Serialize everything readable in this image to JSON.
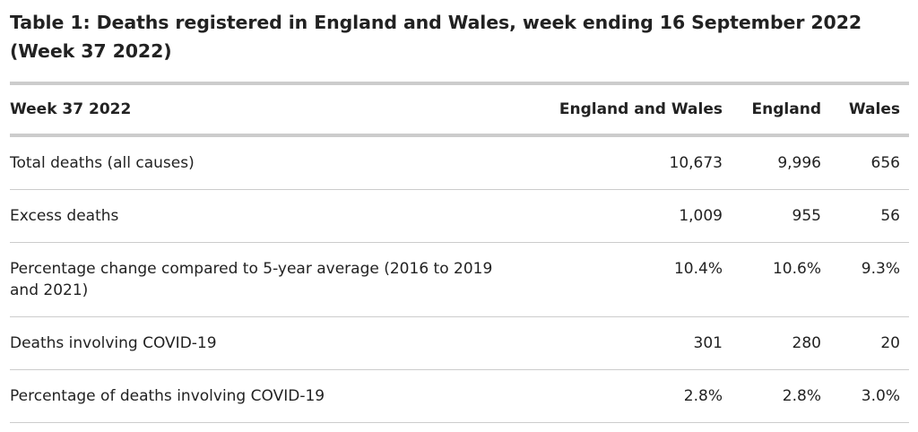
{
  "caption": "Table 1: Deaths registered in England and Wales, week ending 16 September 2022 (Week 37 2022)",
  "table": {
    "headers": [
      "Week 37 2022",
      "England and Wales",
      "England",
      "Wales"
    ],
    "rows": [
      {
        "label": "Total deaths (all causes)",
        "values": [
          "10,673",
          "9,996",
          "656"
        ]
      },
      {
        "label": "Excess deaths",
        "values": [
          "1,009",
          "955",
          "56"
        ]
      },
      {
        "label": "Percentage change compared to 5-year average (2016 to 2019 and 2021)",
        "values": [
          "10.4%",
          "10.6%",
          "9.3%"
        ]
      },
      {
        "label": "Deaths involving COVID-19",
        "values": [
          "301",
          "280",
          "20"
        ]
      },
      {
        "label": "Percentage of deaths involving COVID-19",
        "values": [
          "2.8%",
          "2.8%",
          "3.0%"
        ]
      }
    ]
  }
}
